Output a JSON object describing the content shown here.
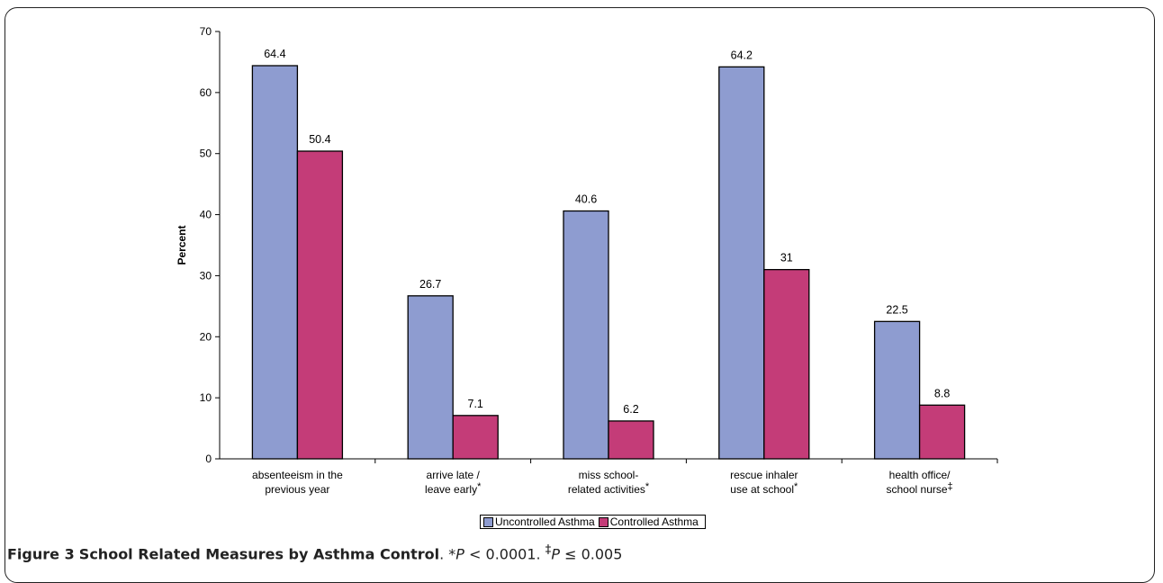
{
  "caption": {
    "label": "Figure 3",
    "title": "School Related Measures by Asthma Control",
    "note_prefix": ". *",
    "note_p1": "P",
    "note_1": " < 0.0001. ",
    "note_mark2": "‡",
    "note_p2": "P",
    "note_2": " ≤ 0.005"
  },
  "chart_data": {
    "type": "bar",
    "ylabel": "Percent",
    "ylim": [
      0,
      70
    ],
    "yticks": [
      0,
      10,
      20,
      30,
      40,
      50,
      60,
      70
    ],
    "categories": [
      {
        "lines": [
          "absenteeism in the",
          "previous year"
        ],
        "mark": ""
      },
      {
        "lines": [
          "arrive late /",
          "leave early"
        ],
        "mark": "*"
      },
      {
        "lines": [
          "miss school-",
          "related activities"
        ],
        "mark": "*"
      },
      {
        "lines": [
          "rescue inhaler",
          "use at school"
        ],
        "mark": "*"
      },
      {
        "lines": [
          "health office/",
          "school nurse"
        ],
        "mark": "‡"
      }
    ],
    "series": [
      {
        "name": "Uncontrolled Asthma",
        "color": "#8e9cd0",
        "values": [
          64.4,
          26.7,
          40.6,
          64.2,
          22.5
        ],
        "labels": [
          "64.4",
          "26.7",
          "40.6",
          "64.2",
          "22.5"
        ]
      },
      {
        "name": "Controlled Asthma",
        "color": "#c43c78",
        "values": [
          50.4,
          7.1,
          6.2,
          31,
          8.8
        ],
        "labels": [
          "50.4",
          "7.1",
          "6.2",
          "31",
          "8.8"
        ]
      }
    ],
    "legend_position": "bottom-center",
    "grid": false
  }
}
